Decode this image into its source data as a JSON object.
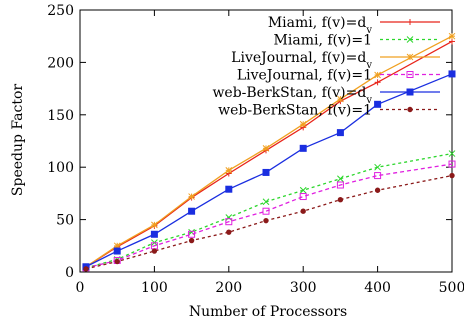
{
  "chart_data": {
    "type": "line",
    "title": "",
    "xlabel": "Number of Processors",
    "ylabel": "Speedup Factor",
    "xlim": [
      0,
      500
    ],
    "ylim": [
      0,
      250
    ],
    "xticks": [
      0,
      100,
      200,
      300,
      400,
      500
    ],
    "yticks": [
      0,
      50,
      100,
      150,
      200,
      250
    ],
    "grid": false,
    "legend_position": "top-right",
    "x": [
      8,
      50,
      100,
      150,
      200,
      250,
      300,
      350,
      400,
      500
    ],
    "series": [
      {
        "name": "Miami, f(v)=d",
        "name_sub": "v",
        "color": "#e8251b",
        "dash": "",
        "marker": "plus",
        "values": [
          5,
          24,
          44,
          71,
          94,
          116,
          138,
          163,
          181,
          220
        ]
      },
      {
        "name": "Miami, f(v)=1",
        "name_sub": "",
        "color": "#2bd62b",
        "dash": "3,3",
        "marker": "cross",
        "values": [
          4,
          12,
          28,
          38,
          52,
          67,
          78,
          89,
          100,
          113
        ]
      },
      {
        "name": "LiveJournal, f(v)=d",
        "name_sub": "v",
        "color": "#f0a020",
        "dash": "",
        "marker": "star",
        "values": [
          5,
          25,
          45,
          72,
          97,
          118,
          141,
          165,
          188,
          225
        ]
      },
      {
        "name": "LiveJournal, f(v)=1",
        "name_sub": "",
        "color": "#e020e0",
        "dash": "4,3",
        "marker": "square",
        "values": [
          4,
          11,
          25,
          36,
          48,
          58,
          72,
          83,
          92,
          103
        ]
      },
      {
        "name": "web-BerkStan, f(v)=d",
        "name_sub": "v",
        "color": "#1a2ee0",
        "dash": "",
        "marker": "filled-square",
        "values": [
          5,
          20,
          36,
          58,
          79,
          95,
          118,
          133,
          160,
          189
        ]
      },
      {
        "name": "web-BerkStan, f(v)=1",
        "name_sub": "",
        "color": "#8b1a1a",
        "dash": "3,3",
        "marker": "dot",
        "values": [
          3,
          10,
          20,
          30,
          38,
          49,
          58,
          69,
          78,
          92
        ]
      }
    ]
  }
}
